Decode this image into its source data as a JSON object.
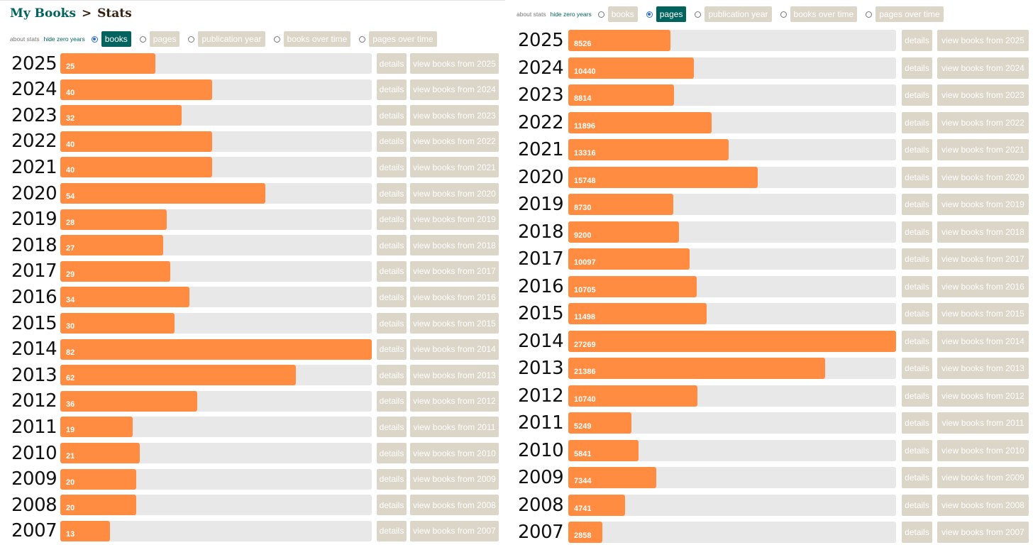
{
  "header": {
    "brand": "My Books",
    "separator": ">",
    "page": "Stats"
  },
  "controls": {
    "about": "about stats",
    "hide_zero": "hide zero years",
    "options": [
      "books",
      "pages",
      "publication year",
      "books over time",
      "pages over time"
    ]
  },
  "details_label": "details",
  "view_prefix": "view books from",
  "colors": {
    "bar": "#ff8c40",
    "track": "#e8e8e8",
    "button": "#dcd6c9",
    "active": "#00635d"
  },
  "chart_data": [
    {
      "type": "bar",
      "orientation": "horizontal",
      "selected": "books",
      "categories": [
        "2025",
        "2024",
        "2023",
        "2022",
        "2021",
        "2020",
        "2019",
        "2018",
        "2017",
        "2016",
        "2015",
        "2014",
        "2013",
        "2012",
        "2011",
        "2010",
        "2009",
        "2008",
        "2007"
      ],
      "values": [
        25,
        40,
        32,
        40,
        40,
        54,
        28,
        27,
        29,
        34,
        30,
        82,
        62,
        36,
        19,
        21,
        20,
        20,
        13
      ],
      "xlim": [
        0,
        82
      ]
    },
    {
      "type": "bar",
      "orientation": "horizontal",
      "selected": "pages",
      "categories": [
        "2025",
        "2024",
        "2023",
        "2022",
        "2021",
        "2020",
        "2019",
        "2018",
        "2017",
        "2016",
        "2015",
        "2014",
        "2013",
        "2012",
        "2011",
        "2010",
        "2009",
        "2008",
        "2007"
      ],
      "values": [
        8526,
        10440,
        8814,
        11896,
        13316,
        15748,
        8730,
        9200,
        10097,
        10705,
        11498,
        27269,
        21386,
        10740,
        5249,
        5841,
        7344,
        4741,
        2858
      ],
      "xlim": [
        0,
        27269
      ]
    }
  ]
}
